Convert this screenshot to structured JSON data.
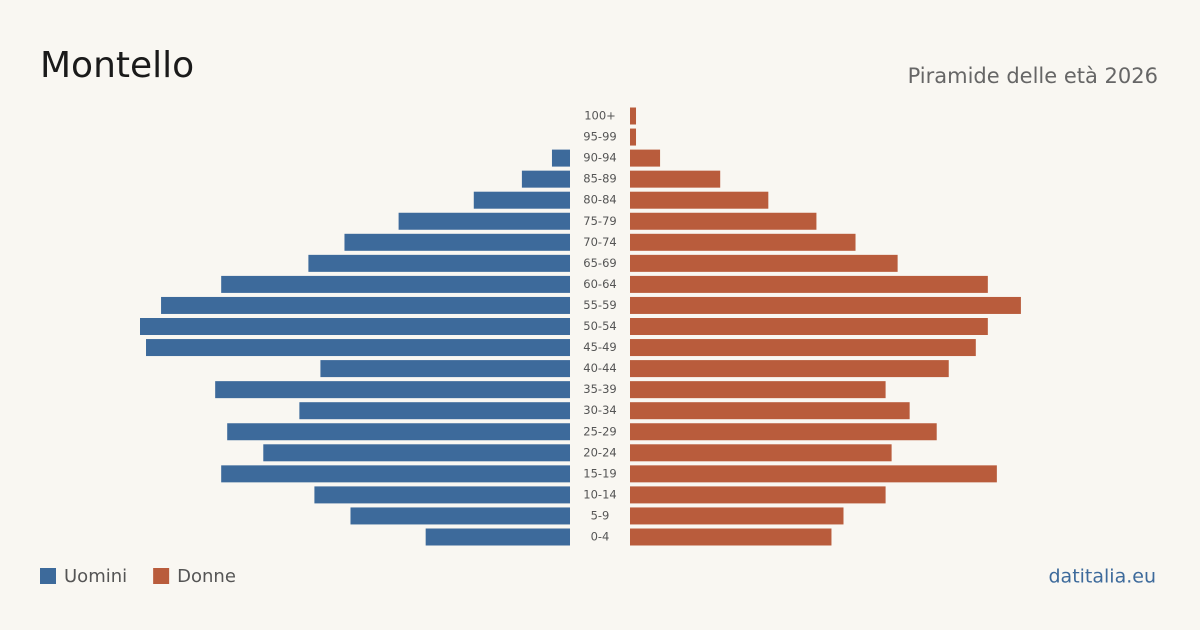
{
  "chart_data": {
    "type": "pyramid",
    "title": "Montello",
    "subtitle": "Piramide delle età 2026",
    "source": "datitalia.eu",
    "categories": [
      "100+",
      "95-99",
      "90-94",
      "85-89",
      "80-84",
      "75-79",
      "70-74",
      "65-69",
      "60-64",
      "55-59",
      "50-54",
      "45-49",
      "40-44",
      "35-39",
      "30-34",
      "25-29",
      "20-24",
      "15-19",
      "10-14",
      "5-9",
      "0-4"
    ],
    "series": [
      {
        "name": "Uomini",
        "color": "#3d6a9b",
        "values": [
          0,
          0,
          6,
          16,
          32,
          57,
          75,
          87,
          116,
          136,
          143,
          141,
          83,
          118,
          90,
          114,
          102,
          116,
          85,
          73,
          48
        ]
      },
      {
        "name": "Donne",
        "color": "#b95c3c",
        "values": [
          2,
          2,
          10,
          30,
          46,
          62,
          75,
          89,
          119,
          130,
          119,
          115,
          106,
          85,
          93,
          102,
          87,
          122,
          85,
          71,
          67
        ]
      }
    ]
  }
}
